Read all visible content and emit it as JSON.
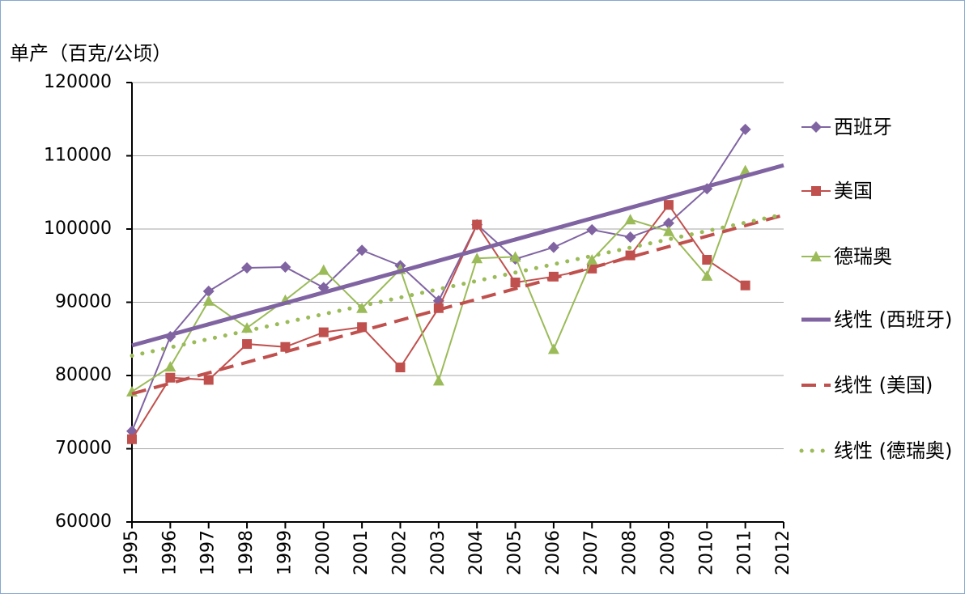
{
  "chart_data": {
    "type": "line",
    "y_label": "单产（百克/公顷）",
    "x": [
      1995,
      1996,
      1997,
      1998,
      1999,
      2000,
      2001,
      2002,
      2003,
      2004,
      2005,
      2006,
      2007,
      2008,
      2009,
      2010,
      2011
    ],
    "xlim": [
      1995,
      2012
    ],
    "xticks": [
      1995,
      1996,
      1997,
      1998,
      1999,
      2000,
      2001,
      2002,
      2003,
      2004,
      2005,
      2006,
      2007,
      2008,
      2009,
      2010,
      2011,
      2012
    ],
    "ylim": [
      60000,
      120000
    ],
    "yticks": [
      60000,
      70000,
      80000,
      90000,
      100000,
      110000,
      120000
    ],
    "grid": true,
    "legend": "right",
    "series": [
      {
        "name": "西班牙",
        "color": "#8064a2",
        "marker": "diamond",
        "line_style": "solid",
        "values": [
          72400,
          85300,
          91500,
          94700,
          94800,
          92000,
          97100,
          95000,
          90200,
          100600,
          95900,
          97500,
          99900,
          98900,
          100800,
          105500,
          113600
        ]
      },
      {
        "name": "美国",
        "color": "#c0504d",
        "marker": "square",
        "line_style": "solid",
        "values": [
          71300,
          79700,
          79400,
          84300,
          83900,
          85900,
          86600,
          81100,
          89200,
          100600,
          92700,
          93500,
          94600,
          96400,
          103300,
          95800,
          92300
        ]
      },
      {
        "name": "德瑞奥",
        "color": "#9bbb59",
        "marker": "triangle",
        "line_style": "solid",
        "values": [
          77800,
          81200,
          90200,
          86500,
          90300,
          94400,
          89200,
          94500,
          79300,
          96000,
          96200,
          83600,
          95800,
          101300,
          99700,
          93600,
          108000
        ]
      },
      {
        "name": "线性 (西班牙)",
        "color": "#8064a2",
        "marker": null,
        "line_style": "thick",
        "x": [
          1995,
          2012
        ],
        "values": [
          84100,
          108700
        ]
      },
      {
        "name": "线性 (美国)",
        "color": "#c0504d",
        "marker": null,
        "line_style": "dashed",
        "x": [
          1995,
          2012
        ],
        "values": [
          77500,
          101900
        ]
      },
      {
        "name": "线性 (德瑞奥)",
        "color": "#9bbb59",
        "marker": null,
        "line_style": "dotted",
        "x": [
          1995,
          2012
        ],
        "values": [
          82700,
          102000
        ]
      }
    ]
  }
}
